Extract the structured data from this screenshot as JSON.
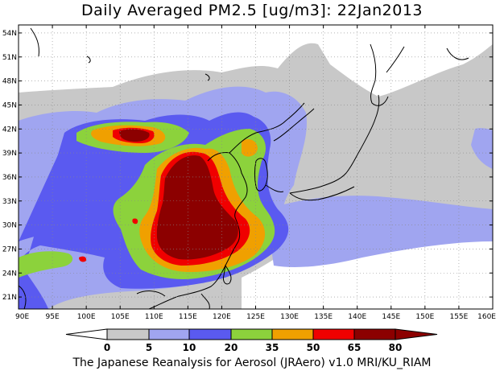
{
  "title": "Daily Averaged PM2.5 [ug/m3]: 22Jan2013",
  "credit": "The Japanese Reanalysis for Aerosol (JRAero) v1.0 MRI/KU_RIAM",
  "map": {
    "lon_range": [
      90,
      160
    ],
    "lat_range": [
      19.5,
      55
    ],
    "lat_ticks": [
      {
        "v": 54,
        "t": "54N"
      },
      {
        "v": 51,
        "t": "51N"
      },
      {
        "v": 48,
        "t": "48N"
      },
      {
        "v": 45,
        "t": "45N"
      },
      {
        "v": 42,
        "t": "42N"
      },
      {
        "v": 39,
        "t": "39N"
      },
      {
        "v": 36,
        "t": "36N"
      },
      {
        "v": 33,
        "t": "33N"
      },
      {
        "v": 30,
        "t": "30N"
      },
      {
        "v": 27,
        "t": "27N"
      },
      {
        "v": 24,
        "t": "24N"
      },
      {
        "v": 21,
        "t": "21N"
      }
    ],
    "lon_ticks": [
      {
        "v": 90,
        "t": "90E"
      },
      {
        "v": 95,
        "t": "95E"
      },
      {
        "v": 100,
        "t": "100E"
      },
      {
        "v": 105,
        "t": "105E"
      },
      {
        "v": 110,
        "t": "110E"
      },
      {
        "v": 115,
        "t": "115E"
      },
      {
        "v": 120,
        "t": "120E"
      },
      {
        "v": 125,
        "t": "125E"
      },
      {
        "v": 130,
        "t": "130E"
      },
      {
        "v": 135,
        "t": "135E"
      },
      {
        "v": 140,
        "t": "140E"
      },
      {
        "v": 145,
        "t": "145E"
      },
      {
        "v": 150,
        "t": "150E"
      },
      {
        "v": 155,
        "t": "155E"
      },
      {
        "v": 160,
        "t": "160E"
      }
    ]
  },
  "colorbar": {
    "levels": [
      "0",
      "5",
      "10",
      "20",
      "35",
      "50",
      "65",
      "80"
    ],
    "colors": [
      "#ffffff",
      "#c8c8c8",
      "#a0a5f0",
      "#5a5af0",
      "#8cd23c",
      "#f0a000",
      "#f00000",
      "#8c0000"
    ]
  }
}
